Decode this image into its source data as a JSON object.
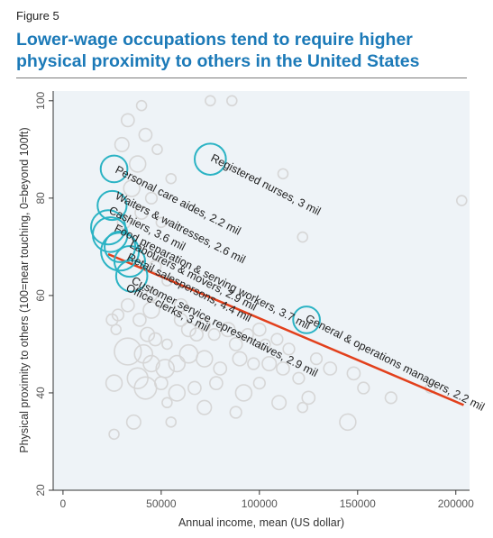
{
  "figure_label": "Figure 5",
  "title": "Lower-wage occupations tend to require higher physical proximity to others in the United States",
  "colors": {
    "title": "#1c7ab8",
    "highlight": "#2bb3c4",
    "background_bubble": "#d6d6d6",
    "trend": "#e2401c",
    "plot_bg": "#eef3f7"
  },
  "chart_data": {
    "type": "scatter",
    "xlabel": "Annual income, mean (US dollar)",
    "ylabel": "Physical proximity to others (100=near touching, 0=beyond 100ft)",
    "xlim": [
      -5000,
      207000
    ],
    "ylim": [
      20,
      102
    ],
    "xticks": [
      0,
      50000,
      100000,
      150000,
      200000
    ],
    "yticks": [
      20,
      40,
      60,
      80,
      100
    ],
    "grid": false,
    "trend_line": {
      "x": [
        23000,
        204000
      ],
      "y": [
        68.5,
        37.5
      ]
    },
    "highlighted": [
      {
        "label": "Registered nurses, 3 mil",
        "x": 75000,
        "y": 88,
        "size": 3.0
      },
      {
        "label": "Personal care aides, 2.2 mil",
        "x": 26000,
        "y": 86,
        "size": 2.2
      },
      {
        "label": "Waiters & waitresses, 2.6 mil",
        "x": 25000,
        "y": 78.5,
        "size": 2.6
      },
      {
        "label": "Cashiers, 3.6 mil",
        "x": 23000,
        "y": 74,
        "size": 3.6
      },
      {
        "label": "Food preparation & serving workers, 3.7 mil",
        "x": 24000,
        "y": 72.5,
        "size": 3.7
      },
      {
        "label": "Labourers & movers, 2.9 mil",
        "x": 29000,
        "y": 70,
        "size": 2.9
      },
      {
        "label": "Retail salespersons, 4.4 mil",
        "x": 29000,
        "y": 69,
        "size": 4.4
      },
      {
        "label": "Customer service representatives, 2.9 mil",
        "x": 34000,
        "y": 67,
        "size": 2.9
      },
      {
        "label": "Office clerks, 3 mil",
        "x": 35000,
        "y": 64,
        "size": 3.0
      },
      {
        "label": "General & operations managers, 2.2 mil",
        "x": 124000,
        "y": 55,
        "size": 2.2
      }
    ],
    "background_points": [
      {
        "x": 40000,
        "y": 99,
        "size": 0.3
      },
      {
        "x": 75000,
        "y": 100,
        "size": 0.3
      },
      {
        "x": 86000,
        "y": 100,
        "size": 0.3
      },
      {
        "x": 203000,
        "y": 79.5,
        "size": 0.3
      },
      {
        "x": 48000,
        "y": 90,
        "size": 0.3
      },
      {
        "x": 112000,
        "y": 85,
        "size": 0.3
      },
      {
        "x": 42000,
        "y": 93,
        "size": 0.5
      },
      {
        "x": 33000,
        "y": 96,
        "size": 0.5
      },
      {
        "x": 38000,
        "y": 87,
        "size": 0.8
      },
      {
        "x": 30000,
        "y": 91,
        "size": 0.6
      },
      {
        "x": 35000,
        "y": 82,
        "size": 0.8
      },
      {
        "x": 40000,
        "y": 77,
        "size": 0.5
      },
      {
        "x": 45000,
        "y": 80,
        "size": 0.4
      },
      {
        "x": 55000,
        "y": 84,
        "size": 0.3
      },
      {
        "x": 50000,
        "y": 75,
        "size": 0.3
      },
      {
        "x": 122000,
        "y": 72,
        "size": 0.3
      },
      {
        "x": 31000,
        "y": 75,
        "size": 0.5
      },
      {
        "x": 47000,
        "y": 66,
        "size": 0.4
      },
      {
        "x": 53000,
        "y": 63,
        "size": 0.3
      },
      {
        "x": 45000,
        "y": 60,
        "size": 0.4
      },
      {
        "x": 33000,
        "y": 58,
        "size": 0.5
      },
      {
        "x": 28000,
        "y": 56,
        "size": 0.4
      },
      {
        "x": 25000,
        "y": 55,
        "size": 0.4
      },
      {
        "x": 27000,
        "y": 53,
        "size": 0.3
      },
      {
        "x": 39000,
        "y": 55,
        "size": 0.5
      },
      {
        "x": 43000,
        "y": 52,
        "size": 0.6
      },
      {
        "x": 47000,
        "y": 51,
        "size": 0.5
      },
      {
        "x": 53000,
        "y": 50,
        "size": 0.3
      },
      {
        "x": 60000,
        "y": 55,
        "size": 0.5
      },
      {
        "x": 64000,
        "y": 53,
        "size": 0.6
      },
      {
        "x": 68000,
        "y": 52,
        "size": 0.5
      },
      {
        "x": 72000,
        "y": 54,
        "size": 0.4
      },
      {
        "x": 77000,
        "y": 52,
        "size": 0.4
      },
      {
        "x": 84000,
        "y": 53,
        "size": 0.6
      },
      {
        "x": 88000,
        "y": 50,
        "size": 0.5
      },
      {
        "x": 94000,
        "y": 52,
        "size": 0.4
      },
      {
        "x": 100000,
        "y": 53,
        "size": 0.5
      },
      {
        "x": 103000,
        "y": 50,
        "size": 0.3
      },
      {
        "x": 109000,
        "y": 51,
        "size": 0.4
      },
      {
        "x": 115000,
        "y": 49,
        "size": 0.4
      },
      {
        "x": 33000,
        "y": 48.5,
        "size": 2.2
      },
      {
        "x": 41000,
        "y": 48,
        "size": 1.0
      },
      {
        "x": 45000,
        "y": 46,
        "size": 0.8
      },
      {
        "x": 52000,
        "y": 45,
        "size": 1.0
      },
      {
        "x": 58000,
        "y": 46,
        "size": 0.8
      },
      {
        "x": 64000,
        "y": 48,
        "size": 1.0
      },
      {
        "x": 72000,
        "y": 47,
        "size": 0.8
      },
      {
        "x": 80000,
        "y": 45,
        "size": 0.5
      },
      {
        "x": 90000,
        "y": 47,
        "size": 0.6
      },
      {
        "x": 97000,
        "y": 46,
        "size": 0.4
      },
      {
        "x": 105000,
        "y": 46,
        "size": 0.6
      },
      {
        "x": 112000,
        "y": 45,
        "size": 0.5
      },
      {
        "x": 120000,
        "y": 43,
        "size": 0.4
      },
      {
        "x": 129000,
        "y": 47,
        "size": 0.4
      },
      {
        "x": 136000,
        "y": 45,
        "size": 0.5
      },
      {
        "x": 148000,
        "y": 44,
        "size": 0.5
      },
      {
        "x": 26000,
        "y": 42,
        "size": 0.8
      },
      {
        "x": 38000,
        "y": 43,
        "size": 1.3
      },
      {
        "x": 42000,
        "y": 41,
        "size": 1.5
      },
      {
        "x": 50000,
        "y": 42,
        "size": 0.5
      },
      {
        "x": 58000,
        "y": 40,
        "size": 0.8
      },
      {
        "x": 67000,
        "y": 41,
        "size": 0.5
      },
      {
        "x": 78000,
        "y": 42,
        "size": 0.5
      },
      {
        "x": 92000,
        "y": 40,
        "size": 0.8
      },
      {
        "x": 100000,
        "y": 42,
        "size": 0.4
      },
      {
        "x": 110000,
        "y": 38,
        "size": 0.6
      },
      {
        "x": 125000,
        "y": 39,
        "size": 0.5
      },
      {
        "x": 153000,
        "y": 41,
        "size": 0.4
      },
      {
        "x": 167000,
        "y": 39,
        "size": 0.4
      },
      {
        "x": 187000,
        "y": 41,
        "size": 0.3
      },
      {
        "x": 53000,
        "y": 38,
        "size": 0.3
      },
      {
        "x": 72000,
        "y": 37,
        "size": 0.6
      },
      {
        "x": 88000,
        "y": 36,
        "size": 0.4
      },
      {
        "x": 122000,
        "y": 37,
        "size": 0.3
      },
      {
        "x": 36000,
        "y": 34,
        "size": 0.6
      },
      {
        "x": 55000,
        "y": 34,
        "size": 0.3
      },
      {
        "x": 145000,
        "y": 34,
        "size": 0.8
      },
      {
        "x": 26000,
        "y": 31.5,
        "size": 0.3
      },
      {
        "x": 45000,
        "y": 57,
        "size": 0.8
      },
      {
        "x": 60000,
        "y": 58,
        "size": 0.5
      }
    ]
  }
}
